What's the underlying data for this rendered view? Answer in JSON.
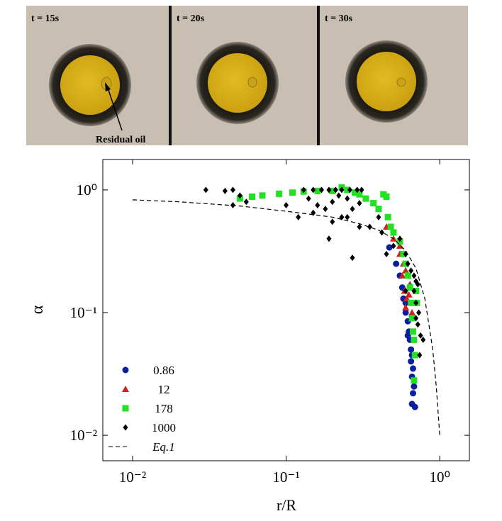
{
  "photos": [
    {
      "label": "t = 15s"
    },
    {
      "label": "t = 20s"
    },
    {
      "label": "t = 30s"
    }
  ],
  "photo_annotation": "Residual oil",
  "chart_data": {
    "type": "scatter",
    "xlabel": "r/R",
    "ylabel": "α",
    "xscale": "log",
    "yscale": "log",
    "xlim": [
      0.0064,
      1.56
    ],
    "ylim": [
      0.0062,
      1.77
    ],
    "xticks": [
      {
        "value": 0.01,
        "label": "10⁻²"
      },
      {
        "value": 0.1,
        "label": "10⁻¹"
      },
      {
        "value": 1,
        "label": "10⁰"
      }
    ],
    "yticks": [
      {
        "value": 0.01,
        "label": "10⁻²"
      },
      {
        "value": 0.1,
        "label": "10⁻¹"
      },
      {
        "value": 1,
        "label": "10⁰"
      }
    ],
    "legend": "lower left",
    "series": [
      {
        "name": "0.86",
        "color": "#0a1f9e",
        "marker": "circle",
        "x": [
          0.47,
          0.52,
          0.55,
          0.57,
          0.58,
          0.6,
          0.62,
          0.63,
          0.64,
          0.65,
          0.66,
          0.65,
          0.67,
          0.66,
          0.68,
          0.67,
          0.66,
          0.69,
          0.6,
          0.62
        ],
        "values": [
          0.34,
          0.25,
          0.2,
          0.16,
          0.13,
          0.1,
          0.085,
          0.07,
          0.06,
          0.05,
          0.045,
          0.04,
          0.035,
          0.03,
          0.025,
          0.022,
          0.018,
          0.017,
          0.12,
          0.065
        ]
      },
      {
        "name": "12",
        "color": "#d42020",
        "marker": "triangle",
        "x": [
          0.45,
          0.5,
          0.55,
          0.58,
          0.6,
          0.62,
          0.64,
          0.57,
          0.59,
          0.61,
          0.6,
          0.66,
          0.55,
          0.63
        ],
        "values": [
          0.5,
          0.4,
          0.3,
          0.25,
          0.22,
          0.2,
          0.17,
          0.2,
          0.15,
          0.13,
          0.11,
          0.1,
          0.35,
          0.14
        ]
      },
      {
        "name": "178",
        "color": "#22e022",
        "marker": "square",
        "x": [
          0.05,
          0.06,
          0.07,
          0.09,
          0.11,
          0.13,
          0.16,
          0.2,
          0.23,
          0.25,
          0.28,
          0.3,
          0.33,
          0.37,
          0.4,
          0.43,
          0.45,
          0.46,
          0.48,
          0.5,
          0.55,
          0.58,
          0.6,
          0.62,
          0.64,
          0.65,
          0.66,
          0.67,
          0.68,
          0.69,
          0.68,
          0.7,
          0.71
        ],
        "values": [
          0.85,
          0.88,
          0.9,
          0.93,
          0.95,
          0.97,
          0.98,
          0.98,
          1.05,
          1.0,
          0.95,
          0.92,
          0.85,
          0.78,
          0.7,
          0.92,
          0.88,
          0.6,
          0.5,
          0.45,
          0.38,
          0.3,
          0.25,
          0.2,
          0.16,
          0.12,
          0.09,
          0.07,
          0.06,
          0.045,
          0.028,
          0.15,
          0.12
        ]
      },
      {
        "name": "1000",
        "color": "#000000",
        "marker": "diamond",
        "x": [
          0.03,
          0.04,
          0.045,
          0.05,
          0.045,
          0.055,
          0.13,
          0.15,
          0.17,
          0.19,
          0.21,
          0.23,
          0.26,
          0.29,
          0.31,
          0.14,
          0.16,
          0.18,
          0.2,
          0.22,
          0.25,
          0.27,
          0.3,
          0.12,
          0.15,
          0.2,
          0.25,
          0.3,
          0.35,
          0.4,
          0.42,
          0.19,
          0.27,
          0.23,
          0.45,
          0.5,
          0.55,
          0.6,
          0.62,
          0.65,
          0.68,
          0.7,
          0.72,
          0.68,
          0.7,
          0.73,
          0.7,
          0.72,
          0.75,
          0.78,
          0.74,
          0.6,
          0.1
        ],
        "values": [
          1.0,
          0.98,
          1.0,
          0.9,
          0.75,
          0.8,
          1.0,
          1.0,
          1.0,
          1.0,
          1.0,
          1.0,
          1.0,
          1.0,
          1.0,
          0.85,
          0.75,
          0.7,
          0.8,
          0.9,
          0.85,
          0.7,
          0.78,
          0.6,
          0.65,
          0.55,
          0.6,
          0.5,
          0.5,
          0.6,
          0.45,
          0.4,
          0.28,
          0.6,
          0.3,
          0.35,
          0.4,
          0.3,
          0.25,
          0.22,
          0.2,
          0.18,
          0.17,
          0.15,
          0.12,
          0.1,
          0.09,
          0.08,
          0.065,
          0.06,
          0.045,
          0.15,
          0.75
        ]
      },
      {
        "name": "Eq.1",
        "color": "#000000",
        "marker": "none",
        "line_style": "dashed",
        "x": [
          0.01,
          0.02,
          0.05,
          0.1,
          0.2,
          0.3,
          0.4,
          0.5,
          0.6,
          0.7,
          0.8,
          0.9,
          0.95,
          1.0
        ],
        "values": [
          0.83,
          0.8,
          0.74,
          0.67,
          0.6,
          0.53,
          0.47,
          0.4,
          0.32,
          0.23,
          0.13,
          0.05,
          0.025,
          0.01
        ]
      }
    ]
  }
}
